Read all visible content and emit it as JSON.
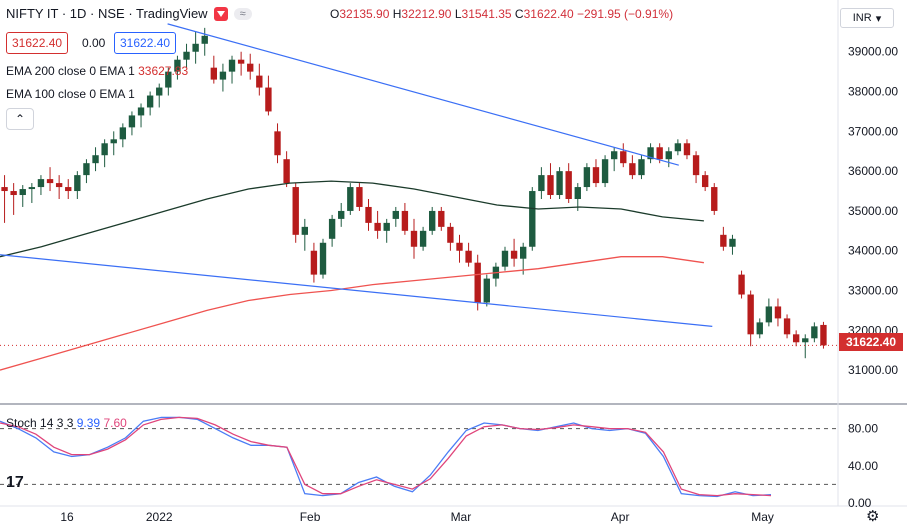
{
  "header": {
    "symbol": "NIFTY IT · 1D · NSE · TradingView",
    "compare": "≈"
  },
  "ohlc": {
    "o_label": "O",
    "o": "32135.90",
    "h_label": "H",
    "h": "32212.90",
    "l_label": "L",
    "l": "31541.35",
    "c_label": "C",
    "c": "31622.40",
    "change": "−291.95 (−0.91%)"
  },
  "price_boxes": {
    "bid": "31622.40",
    "spread": "0.00",
    "ask": "31622.40"
  },
  "indicators": {
    "ema200": "EMA 200 close 0 EMA 1",
    "ema200_value": "33627.83",
    "ema100": "EMA 100 close 0 EMA 1"
  },
  "stochastic": {
    "label": "Stoch 14 3 3",
    "k": "9.39",
    "d": "7.60"
  },
  "currency": "INR",
  "last_price": "31622.40",
  "colors": {
    "up": "#1e5b40",
    "down": "#b71c1c",
    "ema200": "#ef5350",
    "ema100": "#1b3b2b",
    "trend": "#3b6ff5",
    "stoch_k": "#4a7cf5",
    "stoch_d": "#e0457b"
  },
  "chart_data": {
    "type": "candlestick",
    "y_axis": {
      "ticks": [
        31000,
        32000,
        33000,
        34000,
        35000,
        36000,
        37000,
        38000,
        39000
      ],
      "range": [
        30300,
        40300
      ],
      "tick_labels": [
        "31000.00",
        "32000.00",
        "33000.00",
        "34000.00",
        "35000.00",
        "36000.00",
        "37000.00",
        "38000.00",
        "39000.00"
      ]
    },
    "x_axis": {
      "labels": [
        "16",
        "2022",
        "Feb",
        "Mar",
        "Apr",
        "May"
      ]
    },
    "candles": [
      [
        35600,
        35900,
        34700,
        35500
      ],
      [
        35500,
        35700,
        34900,
        35400
      ],
      [
        35400,
        35650,
        35100,
        35550
      ],
      [
        35550,
        35700,
        35200,
        35600
      ],
      [
        35600,
        35900,
        35400,
        35800
      ],
      [
        35800,
        36100,
        35500,
        35700
      ],
      [
        35700,
        35900,
        35300,
        35600
      ],
      [
        35600,
        35800,
        35300,
        35500
      ],
      [
        35500,
        36000,
        35300,
        35900
      ],
      [
        35900,
        36300,
        35700,
        36200
      ],
      [
        36200,
        36600,
        36000,
        36400
      ],
      [
        36400,
        36800,
        36100,
        36700
      ],
      [
        36700,
        37000,
        36400,
        36800
      ],
      [
        36800,
        37200,
        36600,
        37100
      ],
      [
        37100,
        37500,
        36900,
        37400
      ],
      [
        37400,
        37700,
        37100,
        37600
      ],
      [
        37600,
        38000,
        37400,
        37900
      ],
      [
        37900,
        38200,
        37600,
        38100
      ],
      [
        38100,
        38600,
        37900,
        38500
      ],
      [
        38500,
        38900,
        38300,
        38800
      ],
      [
        38800,
        39200,
        38600,
        39000
      ],
      [
        39000,
        39500,
        38700,
        39200
      ],
      [
        39200,
        39600,
        38900,
        39400
      ],
      [
        38600,
        38900,
        38200,
        38300
      ],
      [
        38300,
        38700,
        38000,
        38500
      ],
      [
        38500,
        38900,
        38200,
        38800
      ],
      [
        38800,
        39000,
        38400,
        38700
      ],
      [
        38700,
        38950,
        38300,
        38500
      ],
      [
        38400,
        38700,
        37900,
        38100
      ],
      [
        38100,
        38400,
        37400,
        37500
      ],
      [
        37000,
        37200,
        36200,
        36400
      ],
      [
        36300,
        36500,
        35600,
        35700
      ],
      [
        35600,
        35700,
        34200,
        34400
      ],
      [
        34400,
        34800,
        34000,
        34600
      ],
      [
        34000,
        34200,
        33200,
        33400
      ],
      [
        33400,
        34300,
        33300,
        34200
      ],
      [
        34300,
        34900,
        34100,
        34800
      ],
      [
        34800,
        35200,
        34600,
        35000
      ],
      [
        35000,
        35700,
        34900,
        35600
      ],
      [
        35600,
        35700,
        35000,
        35100
      ],
      [
        35100,
        35300,
        34500,
        34700
      ],
      [
        34700,
        35000,
        34300,
        34500
      ],
      [
        34500,
        34800,
        34200,
        34700
      ],
      [
        34800,
        35100,
        34600,
        35000
      ],
      [
        35000,
        35200,
        34400,
        34500
      ],
      [
        34500,
        34800,
        33800,
        34100
      ],
      [
        34100,
        34600,
        34000,
        34500
      ],
      [
        34500,
        35100,
        34400,
        35000
      ],
      [
        35000,
        35100,
        34500,
        34600
      ],
      [
        34600,
        34700,
        34000,
        34200
      ],
      [
        34200,
        34400,
        33700,
        34000
      ],
      [
        34000,
        34200,
        33600,
        33700
      ],
      [
        33700,
        33900,
        32500,
        32700
      ],
      [
        32700,
        33400,
        32600,
        33300
      ],
      [
        33300,
        33700,
        33100,
        33600
      ],
      [
        33600,
        34100,
        33500,
        34000
      ],
      [
        34000,
        34300,
        33600,
        33800
      ],
      [
        33800,
        34200,
        33400,
        34100
      ],
      [
        34100,
        35600,
        34000,
        35500
      ],
      [
        35500,
        36100,
        35300,
        35900
      ],
      [
        35900,
        36200,
        35300,
        35400
      ],
      [
        35400,
        36100,
        35300,
        36000
      ],
      [
        36000,
        36200,
        35200,
        35300
      ],
      [
        35300,
        35700,
        35000,
        35600
      ],
      [
        35600,
        36200,
        35500,
        36100
      ],
      [
        36100,
        36300,
        35600,
        35700
      ],
      [
        35700,
        36400,
        35600,
        36300
      ],
      [
        36300,
        36600,
        36000,
        36500
      ],
      [
        36500,
        36700,
        36100,
        36200
      ],
      [
        36200,
        36400,
        35800,
        35900
      ],
      [
        35900,
        36400,
        35800,
        36300
      ],
      [
        36300,
        36700,
        36200,
        36600
      ],
      [
        36600,
        36700,
        36200,
        36300
      ],
      [
        36300,
        36600,
        36100,
        36500
      ],
      [
        36500,
        36800,
        36400,
        36700
      ],
      [
        36700,
        36800,
        36300,
        36400
      ],
      [
        36400,
        36500,
        35700,
        35900
      ],
      [
        35900,
        36000,
        35500,
        35600
      ],
      [
        35600,
        35700,
        34900,
        35000
      ],
      [
        34400,
        34600,
        34000,
        34100
      ],
      [
        34100,
        34400,
        33900,
        34300
      ],
      [
        33400,
        33500,
        32800,
        32900
      ],
      [
        32900,
        33000,
        31600,
        31900
      ],
      [
        31900,
        32300,
        31800,
        32200
      ],
      [
        32200,
        32800,
        32100,
        32600
      ],
      [
        32600,
        32800,
        32100,
        32300
      ],
      [
        32300,
        32400,
        31800,
        31900
      ],
      [
        31900,
        32000,
        31600,
        31700
      ],
      [
        31700,
        31900,
        31300,
        31800
      ],
      [
        31800,
        32200,
        31700,
        32100
      ],
      [
        32135.9,
        32212.9,
        31541.35,
        31622.4
      ]
    ],
    "ema100": [
      33850,
      34100,
      34400,
      34700,
      35000,
      35300,
      35550,
      35700,
      35750,
      35700,
      35550,
      35350,
      35150,
      35050,
      35100,
      35050,
      34850,
      34750
    ],
    "ema200": [
      31000,
      31300,
      31600,
      31900,
      32200,
      32500,
      32750,
      32900,
      33000,
      33150,
      33250,
      33350,
      33450,
      33550,
      33700,
      33850,
      33850,
      33700
    ],
    "trend_upper": [
      [
        39700,
        0.2
      ],
      [
        36150,
        0.81
      ]
    ],
    "trend_lower": [
      [
        33900,
        0.0
      ],
      [
        32100,
        0.85
      ]
    ],
    "stoch_k": [
      88,
      80,
      70,
      55,
      50,
      52,
      60,
      70,
      88,
      92,
      92,
      90,
      80,
      70,
      62,
      62,
      60,
      10,
      8,
      10,
      22,
      28,
      18,
      12,
      30,
      55,
      78,
      86,
      84,
      80,
      78,
      82,
      86,
      80,
      78,
      80,
      75,
      50,
      10,
      8,
      7,
      12,
      8,
      9
    ],
    "stoch_d": [
      86,
      82,
      74,
      60,
      52,
      52,
      58,
      68,
      84,
      90,
      92,
      91,
      84,
      74,
      66,
      62,
      60,
      20,
      10,
      10,
      18,
      25,
      20,
      15,
      26,
      48,
      72,
      82,
      84,
      80,
      79,
      81,
      84,
      82,
      80,
      80,
      76,
      55,
      15,
      9,
      8,
      10,
      9,
      8
    ],
    "stoch_axis": {
      "ticks": [
        0,
        40,
        80
      ],
      "tick_labels": [
        "0.00",
        "40.00",
        "80.00"
      ]
    }
  }
}
